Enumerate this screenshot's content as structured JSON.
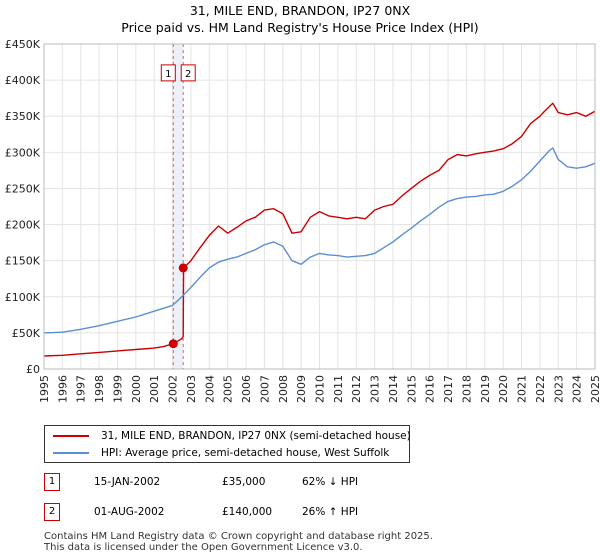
{
  "header": {
    "title_line1": "31, MILE END, BRANDON, IP27 0NX",
    "title_line2": "Price paid vs. HM Land Registry's House Price Index (HPI)"
  },
  "chart_data": {
    "type": "line",
    "xlim": [
      1995,
      2025
    ],
    "ylim": [
      0,
      450000
    ],
    "y_ticks": [
      0,
      50000,
      100000,
      150000,
      200000,
      250000,
      300000,
      350000,
      400000,
      450000
    ],
    "y_tick_labels": [
      "£0",
      "£50K",
      "£100K",
      "£150K",
      "£200K",
      "£250K",
      "£300K",
      "£350K",
      "£400K",
      "£450K"
    ],
    "x_ticks": [
      1995,
      1996,
      1997,
      1998,
      1999,
      2000,
      2001,
      2002,
      2003,
      2004,
      2005,
      2006,
      2007,
      2008,
      2009,
      2010,
      2011,
      2012,
      2013,
      2014,
      2015,
      2016,
      2017,
      2018,
      2019,
      2020,
      2021,
      2022,
      2023,
      2024,
      2025
    ],
    "x_tick_labels": [
      "1995",
      "1996",
      "1997",
      "1998",
      "1999",
      "2000",
      "2001",
      "2002",
      "2003",
      "2004",
      "2005",
      "2006",
      "2007",
      "2008",
      "2009",
      "2010",
      "2011",
      "2012",
      "2013",
      "2014",
      "2015",
      "2016",
      "2017",
      "2018",
      "2019",
      "2020",
      "2021",
      "2022",
      "2023",
      "2024",
      "2025"
    ],
    "grid": true,
    "series": [
      {
        "name": "31, MILE END, BRANDON, IP27 0NX (semi-detached house)",
        "color": "#cc0000",
        "x": [
          1995,
          1996,
          1997,
          1998,
          1999,
          2000,
          2001,
          2001.5,
          2002.04,
          2002.5,
          2002.58,
          2002.6,
          2003,
          2003.5,
          2004,
          2004.5,
          2005,
          2005.5,
          2006,
          2006.5,
          2007,
          2007.5,
          2008,
          2008.5,
          2009,
          2009.5,
          2010,
          2010.5,
          2011,
          2011.5,
          2012,
          2012.5,
          2013,
          2013.5,
          2014,
          2014.5,
          2015,
          2015.5,
          2016,
          2016.5,
          2017,
          2017.5,
          2018,
          2018.5,
          2019,
          2019.5,
          2020,
          2020.5,
          2021,
          2021.5,
          2022,
          2022.3,
          2022.7,
          2023,
          2023.5,
          2024,
          2024.5,
          2025
        ],
        "y": [
          18000,
          19000,
          21000,
          23000,
          25000,
          27000,
          29000,
          31000,
          35000,
          42000,
          45000,
          140000,
          150000,
          168000,
          185000,
          198000,
          188000,
          196000,
          205000,
          210000,
          220000,
          222000,
          215000,
          188000,
          190000,
          210000,
          218000,
          212000,
          210000,
          208000,
          210000,
          208000,
          220000,
          225000,
          228000,
          240000,
          250000,
          260000,
          268000,
          275000,
          290000,
          297000,
          295000,
          298000,
          300000,
          302000,
          305000,
          312000,
          322000,
          340000,
          350000,
          358000,
          368000,
          355000,
          352000,
          355000,
          350000,
          357000
        ]
      },
      {
        "name": "HPI: Average price, semi-detached house, West Suffolk",
        "color": "#5b8fd4",
        "x": [
          1995,
          1996,
          1997,
          1998,
          1999,
          2000,
          2001,
          2002,
          2002.5,
          2003,
          2003.5,
          2004,
          2004.5,
          2005,
          2005.5,
          2006,
          2006.5,
          2007,
          2007.5,
          2008,
          2008.5,
          2009,
          2009.5,
          2010,
          2010.5,
          2011,
          2011.5,
          2012,
          2012.5,
          2013,
          2013.5,
          2014,
          2014.5,
          2015,
          2015.5,
          2016,
          2016.5,
          2017,
          2017.5,
          2018,
          2018.5,
          2019,
          2019.5,
          2020,
          2020.5,
          2021,
          2021.5,
          2022,
          2022.5,
          2022.7,
          2023,
          2023.5,
          2024,
          2024.5,
          2025
        ],
        "y": [
          50000,
          51000,
          55000,
          60000,
          66000,
          72000,
          80000,
          88000,
          100000,
          113000,
          127000,
          140000,
          148000,
          152000,
          155000,
          160000,
          165000,
          172000,
          176000,
          170000,
          150000,
          145000,
          155000,
          160000,
          158000,
          157000,
          155000,
          156000,
          157000,
          160000,
          168000,
          176000,
          186000,
          195000,
          205000,
          214000,
          224000,
          232000,
          236000,
          238000,
          239000,
          241000,
          242000,
          246000,
          253000,
          262000,
          274000,
          288000,
          302000,
          306000,
          290000,
          280000,
          278000,
          280000,
          285000
        ]
      }
    ],
    "transactions": [
      {
        "label": "1",
        "date_label": "15-JAN-2002",
        "x": 2002.04,
        "price": 35000,
        "price_label": "£35,000",
        "hpi_change": "62% ↓ HPI"
      },
      {
        "label": "2",
        "date_label": "01-AUG-2002",
        "x": 2002.58,
        "price": 140000,
        "price_label": "£140,000",
        "hpi_change": "26% ↑ HPI"
      }
    ]
  },
  "legend": {
    "items": [
      {
        "label": "31, MILE END, BRANDON, IP27 0NX (semi-detached house)",
        "color": "#cc0000"
      },
      {
        "label": "HPI: Average price, semi-detached house, West Suffolk",
        "color": "#5b8fd4"
      }
    ]
  },
  "footer": {
    "line1": "Contains HM Land Registry data © Crown copyright and database right 2025.",
    "line2": "This data is licensed under the Open Government Licence v3.0."
  }
}
